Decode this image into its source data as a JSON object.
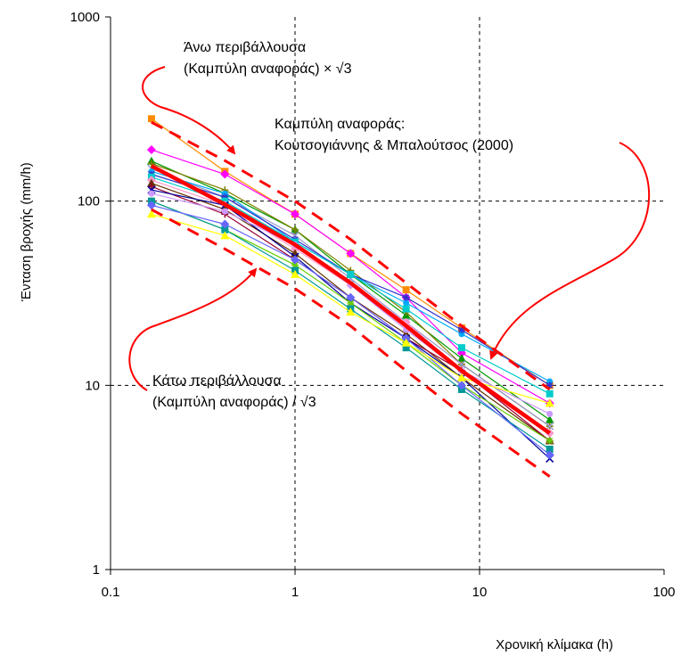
{
  "chart_data": {
    "type": "line",
    "x_scale": "log",
    "y_scale": "log",
    "xlim": [
      0.1,
      100
    ],
    "ylim": [
      1,
      1000
    ],
    "grid": "major dashed at decades",
    "xlabel": "Χρονική κλίμακα (h)",
    "ylabel": "Ένταση βροχής (mm/h)",
    "x_ticks": [
      "0.1",
      "1",
      "10",
      "100"
    ],
    "y_ticks": [
      "1",
      "10",
      "100",
      "1000"
    ],
    "x": [
      0.1667,
      0.4167,
      1,
      2,
      4,
      8,
      24
    ],
    "reference_curve": {
      "values": [
        155,
        96,
        58,
        36,
        21,
        12,
        5.5
      ],
      "color": "#ff0000"
    },
    "upper_envelope": {
      "values": [
        268,
        166,
        100,
        62,
        36,
        21,
        9.5
      ],
      "color": "#ff0000"
    },
    "lower_envelope": {
      "values": [
        90,
        55,
        33.5,
        21,
        12,
        7,
        3.2
      ],
      "color": "#ff0000"
    },
    "series": [
      {
        "values": [
          280,
          145,
          85,
          52,
          33,
          20.5,
          10
        ],
        "color": "#ff8c00"
      },
      {
        "values": [
          190,
          140,
          85,
          52,
          30,
          15,
          8
        ],
        "color": "#ff00ff"
      },
      {
        "values": [
          165,
          110,
          70,
          40,
          24,
          14,
          6.5
        ],
        "color": "#009900"
      },
      {
        "values": [
          160,
          115,
          70,
          42,
          25,
          13,
          6
        ],
        "color": "#808000"
      },
      {
        "values": [
          150,
          105,
          65,
          38,
          22,
          13,
          6
        ],
        "color": "#9999cc"
      },
      {
        "values": [
          145,
          110,
          60,
          40,
          28,
          19,
          10.5
        ],
        "color": "#00aaff"
      },
      {
        "values": [
          140,
          105,
          62,
          40,
          30,
          20,
          10
        ],
        "color": "#3333cc"
      },
      {
        "values": [
          135,
          100,
          60,
          40,
          26,
          16,
          9
        ],
        "color": "#00cccc"
      },
      {
        "values": [
          130,
          95,
          55,
          35,
          22,
          12,
          5.5
        ],
        "color": "#ff99cc"
      },
      {
        "values": [
          125,
          90,
          52,
          30,
          19,
          11,
          5
        ],
        "color": "#663300"
      },
      {
        "values": [
          120,
          85,
          48,
          30,
          18,
          12,
          5
        ],
        "color": "#990033"
      },
      {
        "values": [
          115,
          95,
          50,
          28,
          18,
          11,
          4
        ],
        "color": "#000099"
      },
      {
        "values": [
          110,
          88,
          58,
          35,
          20,
          12,
          7
        ],
        "color": "#cc99ff"
      },
      {
        "values": [
          100,
          70,
          45,
          28,
          17,
          10,
          5
        ],
        "color": "#66cc00"
      },
      {
        "values": [
          100,
          70,
          42,
          26,
          16,
          9.5,
          4.5
        ],
        "color": "#009999"
      },
      {
        "values": [
          95,
          75,
          48,
          30,
          18,
          10,
          4.2
        ],
        "color": "#6666ff"
      },
      {
        "values": [
          85,
          65,
          40,
          25,
          17,
          11,
          8
        ],
        "color": "#ffff00"
      }
    ],
    "annotations": [
      {
        "line1": "Άνω περιβάλλουσα",
        "line2": "(Καμπύλη αναφοράς) × √3"
      },
      {
        "line1": "Καμπύλη αναφοράς:",
        "line2": "Κουτσογιάννης & Μπαλούτσος (2000)"
      },
      {
        "line1": "Κάτω περιβάλλουσα",
        "line2": "(Καμπύλη αναφοράς) / √3"
      }
    ]
  }
}
